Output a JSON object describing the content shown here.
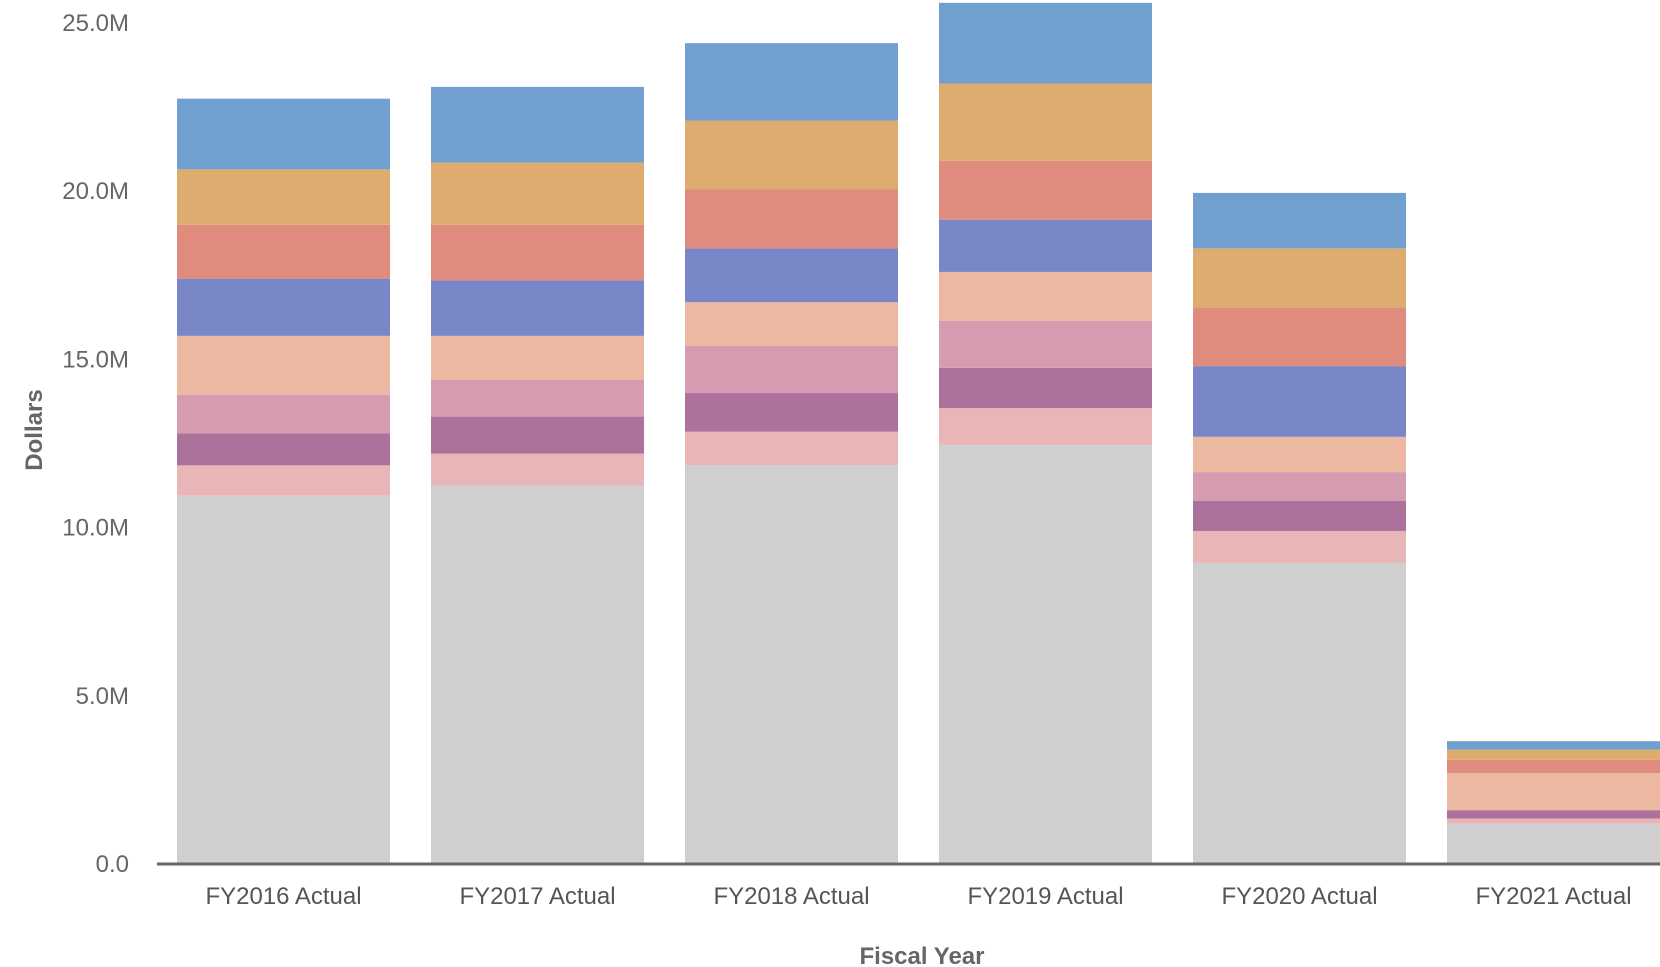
{
  "chart_data": {
    "type": "bar",
    "stacked": true,
    "xlabel": "Fiscal Year",
    "ylabel": "Dollars",
    "ylim": [
      0,
      25000000
    ],
    "yticks": [
      {
        "value": 0,
        "label": "0.0"
      },
      {
        "value": 5000000,
        "label": "5.0M"
      },
      {
        "value": 10000000,
        "label": "10.0M"
      },
      {
        "value": 15000000,
        "label": "15.0M"
      },
      {
        "value": 20000000,
        "label": "20.0M"
      },
      {
        "value": 25000000,
        "label": "25.0M"
      }
    ],
    "grid": false,
    "categories": [
      "FY2016 Actual",
      "FY2017 Actual",
      "FY2018 Actual",
      "FY2019 Actual",
      "FY2020 Actual",
      "FY2021 Actual"
    ],
    "series": [
      {
        "color": "#cfcfcf",
        "values": [
          10950000,
          11250000,
          11850000,
          12450000,
          8950000,
          1200000
        ]
      },
      {
        "color": "#e9b6b8",
        "values": [
          900000,
          950000,
          1000000,
          1100000,
          950000,
          150000
        ]
      },
      {
        "color": "#ad729c",
        "values": [
          950000,
          1100000,
          1150000,
          1200000,
          900000,
          250000
        ]
      },
      {
        "color": "#d59bb1",
        "values": [
          1150000,
          1100000,
          1400000,
          1400000,
          850000,
          0
        ]
      },
      {
        "color": "#ecb8a1",
        "values": [
          1750000,
          1300000,
          1300000,
          1450000,
          1050000,
          1100000
        ]
      },
      {
        "color": "#7987c8",
        "values": [
          1700000,
          1650000,
          1600000,
          1550000,
          2100000,
          0
        ]
      },
      {
        "color": "#df8b7e",
        "values": [
          1600000,
          1650000,
          1750000,
          1750000,
          1750000,
          400000
        ]
      },
      {
        "color": "#dfac6f",
        "values": [
          1650000,
          1850000,
          2050000,
          2300000,
          1750000,
          300000
        ]
      },
      {
        "color": "#719fd0",
        "values": [
          2100000,
          2250000,
          2300000,
          2400000,
          1650000,
          250000
        ]
      }
    ]
  }
}
